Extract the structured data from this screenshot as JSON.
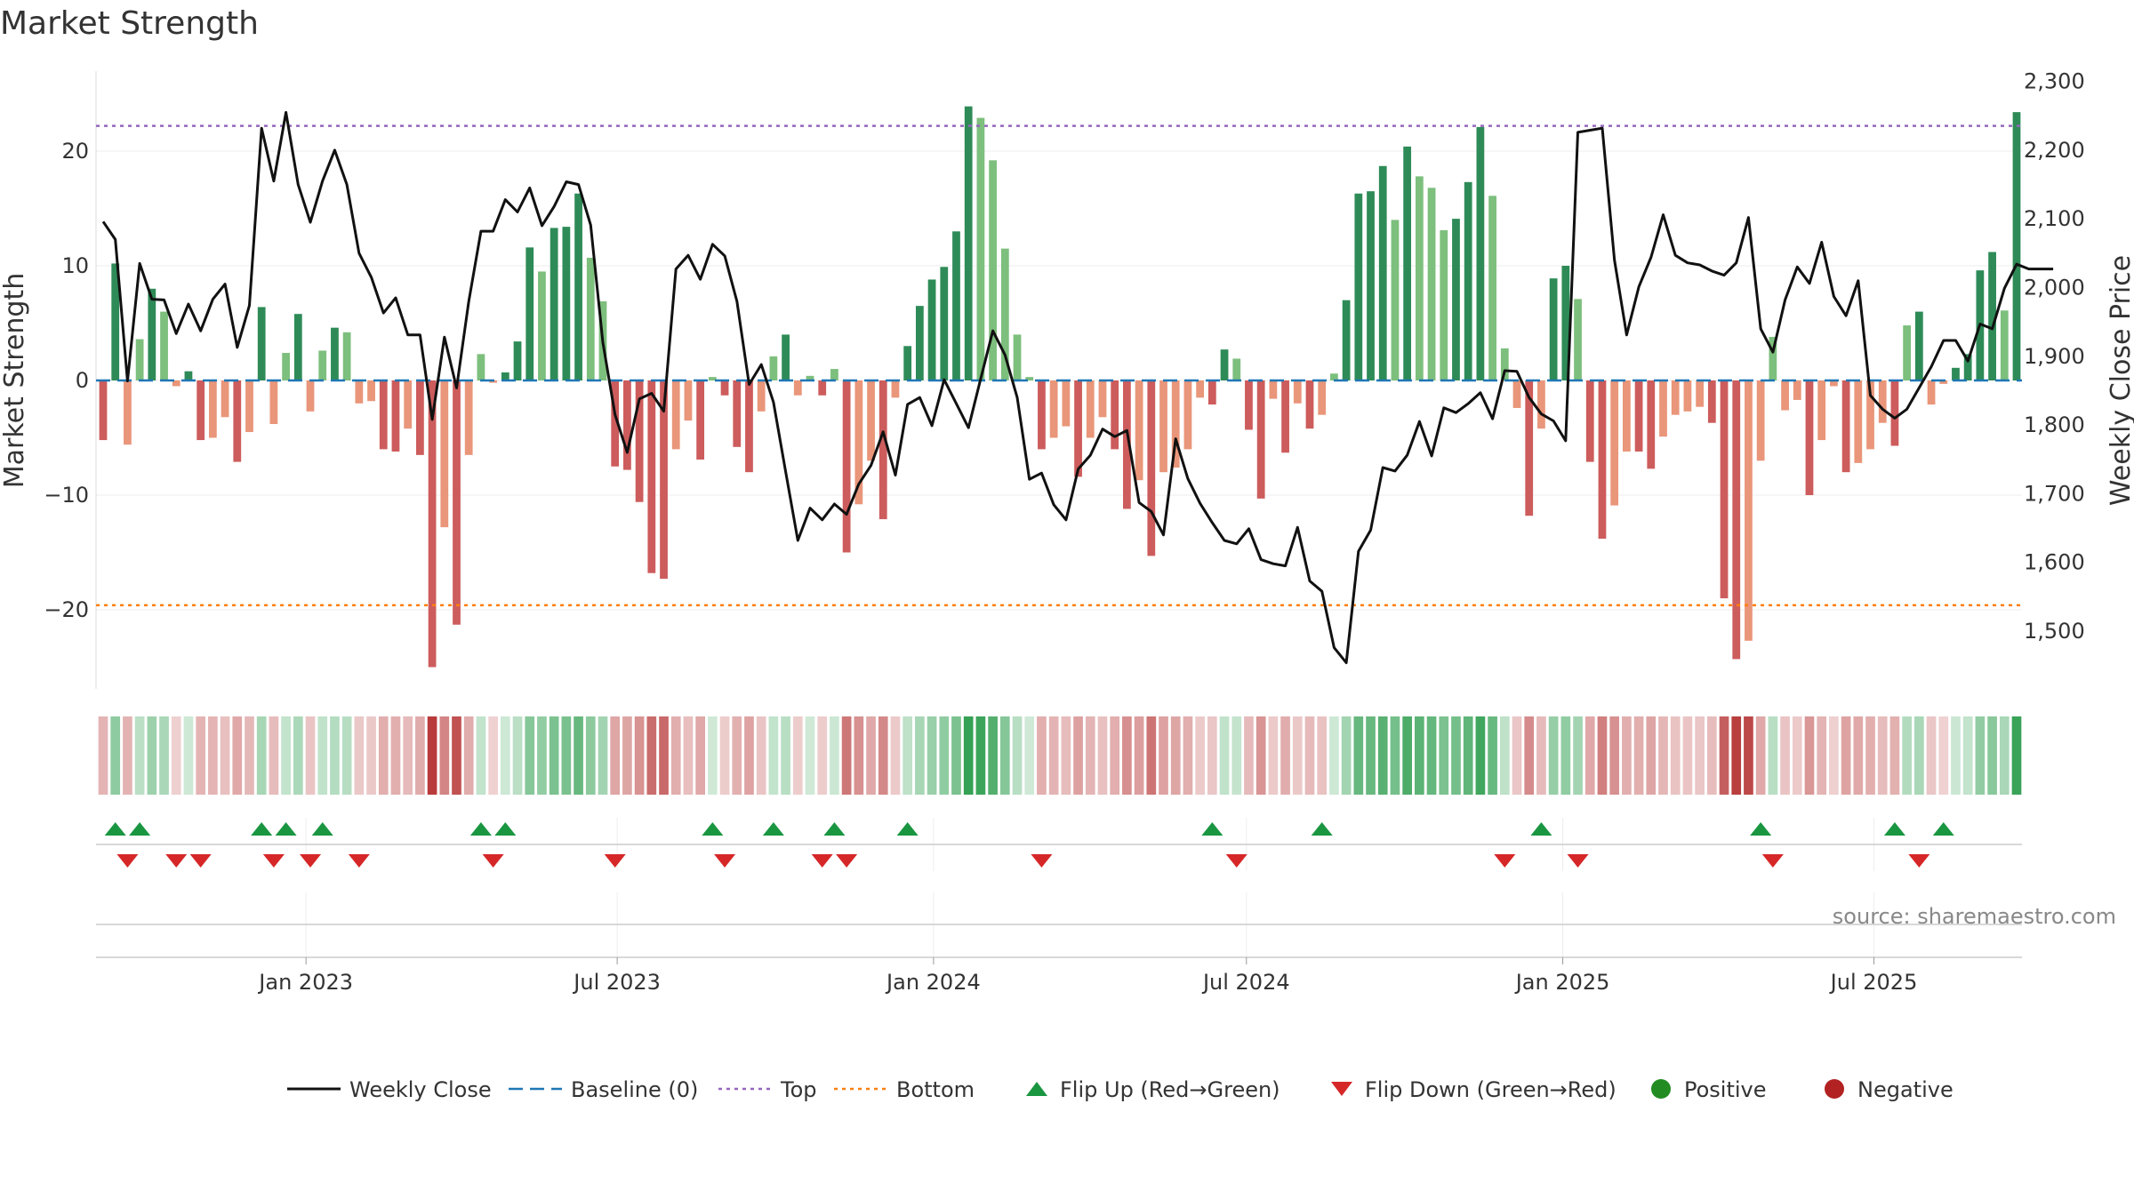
{
  "chart_data": {
    "type": "bar+line",
    "title": "Market Strength",
    "ylabel_left": "Market Strength",
    "ylabel_right": "Weekly Close Price",
    "ylim_left": [
      -27,
      27
    ],
    "ylim_right": [
      1420,
      2320
    ],
    "yticks_left": [
      20,
      10,
      0,
      -10,
      -20
    ],
    "yticks_left_labels": [
      "20",
      "10",
      "0",
      "−10",
      "−20"
    ],
    "yticks_right": [
      2300,
      2200,
      2100,
      2000,
      1900,
      1800,
      1700,
      1600,
      1500
    ],
    "yticks_right_labels": [
      "2,300",
      "2,200",
      "2,100",
      "2,000",
      "1,900",
      "1,800",
      "1,700",
      "1,600",
      "1,500"
    ],
    "top_threshold": 22.2,
    "bottom_threshold": -19.6,
    "x_start": "2022-09-05",
    "x_end": "2025-09-22",
    "xtick_dates": [
      "2023-01-01",
      "2023-07-01",
      "2024-01-01",
      "2024-07-01",
      "2025-01-01",
      "2025-07-01"
    ],
    "xtick_labels": [
      "Jan 2023",
      "Jul 2023",
      "Jan 2024",
      "Jul 2024",
      "Jan 2025",
      "Jul 2025"
    ],
    "strength": [
      -5.2,
      10.2,
      -5.6,
      3.6,
      8,
      6,
      -0.5,
      0.8,
      -5.2,
      -5,
      -3.2,
      -7.1,
      -4.5,
      6.4,
      -3.8,
      2.4,
      5.8,
      -2.7,
      2.6,
      4.6,
      4.2,
      -2,
      -1.8,
      -6,
      -6.2,
      -4.2,
      -6.5,
      -25,
      -12.8,
      -21.3,
      -6.5,
      2.3,
      -0.2,
      0.7,
      3.4,
      11.6,
      9.5,
      13.3,
      13.4,
      16.3,
      10.7,
      6.9,
      -7.5,
      -7.8,
      -10.6,
      -16.8,
      -17.3,
      -6,
      -3.5,
      -6.9,
      0.3,
      -1.3,
      -5.8,
      -8,
      -2.7,
      2.1,
      4,
      -1.3,
      0.4,
      -1.3,
      1,
      -15,
      -10.8,
      -7,
      -12.1,
      -1.5,
      3,
      6.5,
      8.8,
      9.9,
      13,
      23.9,
      22.9,
      19.2,
      11.5,
      4,
      0.3,
      -6,
      -5,
      -4,
      -8.4,
      -5,
      -3.2,
      -6,
      -11.2,
      -8.7,
      -15.3,
      -8,
      -7.6,
      -6,
      -1.5,
      -2.1,
      2.7,
      1.9,
      -4.3,
      -10.3,
      -1.6,
      -6.3,
      -2,
      -4.2,
      -3,
      0.6,
      7,
      16.3,
      16.5,
      18.7,
      14,
      20.4,
      17.8,
      16.8,
      13.1,
      14.1,
      17.3,
      22.1,
      16.1,
      2.8,
      -2.4,
      -11.8,
      -4.2,
      8.9,
      10,
      7.1,
      -7.1,
      -13.8,
      -10.9,
      -6.2,
      -6.2,
      -7.7,
      -4.9,
      -3,
      -2.7,
      -2.3,
      -3.7,
      -19,
      -24.3,
      -22.7,
      -7,
      3.8,
      -2.6,
      -1.7,
      -10,
      -5.2,
      -0.5,
      -8,
      -7.2,
      -6,
      -3.7,
      -5.7,
      4.8,
      6,
      -2.1,
      -0.3,
      1.1,
      2.3,
      9.6,
      11.2,
      6.1,
      23.4
    ],
    "close": [
      2096,
      2070,
      1864,
      2035,
      1983,
      1982,
      1933,
      1976,
      1937,
      1983,
      2005,
      1913,
      1974,
      2232,
      2155,
      2255,
      2150,
      2095,
      2155,
      2200,
      2150,
      2050,
      2015,
      1963,
      1985,
      1931,
      1931,
      1808,
      1928,
      1854,
      1980,
      2082,
      2082,
      2128,
      2110,
      2145,
      2090,
      2118,
      2154,
      2150,
      2091,
      1920,
      1815,
      1760,
      1838,
      1846,
      1820,
      2027,
      2047,
      2012,
      2063,
      2046,
      1980,
      1859,
      1888,
      1833,
      1732,
      1632,
      1679,
      1662,
      1685,
      1670,
      1714,
      1741,
      1790,
      1727,
      1830,
      1840,
      1799,
      1866,
      1831,
      1796,
      1867,
      1937,
      1902,
      1840,
      1721,
      1730,
      1684,
      1662,
      1736,
      1756,
      1794,
      1783,
      1792,
      1687,
      1674,
      1640,
      1780,
      1722,
      1686,
      1658,
      1632,
      1627,
      1649,
      1604,
      1598,
      1595,
      1651,
      1573,
      1558,
      1476,
      1454,
      1616,
      1647,
      1738,
      1733,
      1756,
      1805,
      1755,
      1825,
      1818,
      1831,
      1847,
      1809,
      1879,
      1878,
      1840,
      1816,
      1806,
      1777,
      2226,
      2229,
      2232,
      2040,
      1931,
      2001,
      2044,
      2106,
      2047,
      2036,
      2033,
      2024,
      2018,
      2036,
      2102,
      1940,
      1906,
      1982,
      2030,
      2006,
      2066,
      1987,
      1959,
      2010,
      1843,
      1823,
      1810,
      1823,
      1854,
      1885,
      1923,
      1923,
      1893,
      1947,
      1940,
      1999,
      2034,
      2027,
      2027,
      2027
    ],
    "heat_strip_color_by": "strength",
    "flip_up_index": [
      1,
      3,
      13,
      15,
      18,
      31,
      33,
      50,
      55,
      60,
      66,
      91,
      100,
      118,
      136,
      147,
      151
    ],
    "flip_down_index": [
      2,
      6,
      8,
      14,
      17,
      21,
      32,
      42,
      51,
      59,
      61,
      77,
      93,
      115,
      121,
      137,
      149
    ],
    "legend": [
      "Weekly Close",
      "Baseline (0)",
      "Top",
      "Bottom",
      "Flip Up (Red→Green)",
      "Flip Down (Green→Red)",
      "Positive",
      "Negative"
    ],
    "source": "source: sharemaestro.com",
    "colors": {
      "pos_dark": "#2e8b57",
      "pos_light": "#7dbf7d",
      "neg_dark": "#cd5c5c",
      "neg_light": "#e9967a",
      "close_line": "#111111",
      "baseline": "#1f77b4",
      "top_line": "#9467bd",
      "bottom_line": "#ff7f0e",
      "flip_up": "#1a9641",
      "flip_down": "#d62728",
      "legend_positive": "#228b22",
      "legend_negative": "#b22222"
    }
  }
}
